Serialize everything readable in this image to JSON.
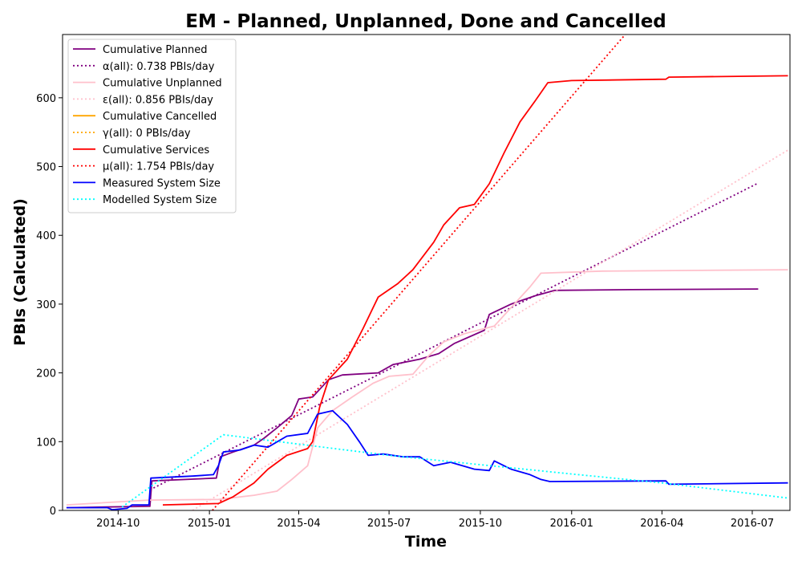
{
  "chart_data": {
    "type": "line",
    "title": "EM - Planned, Unplanned, Done  and Cancelled",
    "xlabel": "Time",
    "ylabel": "PBIs (Calculated)",
    "xlim": [
      "2014-08-06",
      "2016-08-08"
    ],
    "ylim": [
      0,
      692
    ],
    "x_ticks": [
      "2014-10",
      "2015-01",
      "2015-04",
      "2015-07",
      "2015-10",
      "2016-01",
      "2016-04",
      "2016-07"
    ],
    "y_ticks": [
      0,
      100,
      200,
      300,
      400,
      500,
      600
    ],
    "grid": false,
    "legend_position": "top-left",
    "series": [
      {
        "name": "Cumulative Planned",
        "color": "#800080",
        "style": "solid",
        "points": [
          [
            "2014-08-10",
            4
          ],
          [
            "2014-09-20",
            5
          ],
          [
            "2014-11-02",
            6
          ],
          [
            "2014-11-04",
            43
          ],
          [
            "2015-01-08",
            47
          ],
          [
            "2015-01-12",
            78
          ],
          [
            "2015-01-25",
            85
          ],
          [
            "2015-02-15",
            95
          ],
          [
            "2015-02-25",
            105
          ],
          [
            "2015-03-10",
            120
          ],
          [
            "2015-03-25",
            138
          ],
          [
            "2015-04-01",
            162
          ],
          [
            "2015-04-15",
            165
          ],
          [
            "2015-05-01",
            190
          ],
          [
            "2015-05-15",
            197
          ],
          [
            "2015-06-20",
            200
          ],
          [
            "2015-07-05",
            212
          ],
          [
            "2015-08-01",
            220
          ],
          [
            "2015-08-20",
            228
          ],
          [
            "2015-09-05",
            243
          ],
          [
            "2015-10-05",
            262
          ],
          [
            "2015-10-10",
            285
          ],
          [
            "2015-11-01",
            300
          ],
          [
            "2015-11-25",
            312
          ],
          [
            "2015-12-15",
            320
          ],
          [
            "2016-03-01",
            321
          ],
          [
            "2016-07-07",
            322
          ]
        ]
      },
      {
        "name": "α(all): 0.738 PBIs/day",
        "color": "#800080",
        "style": "dotted",
        "points": [
          [
            "2014-11-02",
            30
          ],
          [
            "2016-07-07",
            476
          ]
        ]
      },
      {
        "name": "Cumulative Unplanned",
        "color": "#ffc0cb",
        "style": "solid",
        "points": [
          [
            "2014-08-10",
            8
          ],
          [
            "2014-11-01",
            15
          ],
          [
            "2015-01-10",
            16
          ],
          [
            "2015-02-15",
            22
          ],
          [
            "2015-03-10",
            28
          ],
          [
            "2015-03-25",
            45
          ],
          [
            "2015-04-10",
            65
          ],
          [
            "2015-04-20",
            120
          ],
          [
            "2015-05-05",
            145
          ],
          [
            "2015-05-25",
            165
          ],
          [
            "2015-06-15",
            185
          ],
          [
            "2015-07-01",
            195
          ],
          [
            "2015-07-25",
            198
          ],
          [
            "2015-08-10",
            225
          ],
          [
            "2015-08-25",
            245
          ],
          [
            "2015-09-15",
            257
          ],
          [
            "2015-10-15",
            268
          ],
          [
            "2015-11-01",
            295
          ],
          [
            "2015-11-20",
            325
          ],
          [
            "2015-12-01",
            345
          ],
          [
            "2016-02-01",
            348
          ],
          [
            "2016-08-06",
            350
          ]
        ]
      },
      {
        "name": "ε(all): 0.856 PBIs/day",
        "color": "#ffc0cb",
        "style": "dotted",
        "points": [
          [
            "2014-12-15",
            0
          ],
          [
            "2016-08-06",
            524
          ]
        ]
      },
      {
        "name": "Cumulative Cancelled",
        "color": "#ffa500",
        "style": "solid",
        "points": []
      },
      {
        "name": "γ(all): 0 PBIs/day",
        "color": "#ffa500",
        "style": "dotted",
        "points": []
      },
      {
        "name": "Cumulative Services",
        "color": "#ff0000",
        "style": "solid",
        "points": [
          [
            "2014-11-15",
            8
          ],
          [
            "2015-01-10",
            10
          ],
          [
            "2015-01-25",
            20
          ],
          [
            "2015-02-15",
            40
          ],
          [
            "2015-03-01",
            60
          ],
          [
            "2015-03-20",
            80
          ],
          [
            "2015-04-10",
            90
          ],
          [
            "2015-04-15",
            100
          ],
          [
            "2015-04-22",
            150
          ],
          [
            "2015-05-01",
            190
          ],
          [
            "2015-05-20",
            220
          ],
          [
            "2015-06-05",
            265
          ],
          [
            "2015-06-20",
            310
          ],
          [
            "2015-07-10",
            330
          ],
          [
            "2015-07-25",
            350
          ],
          [
            "2015-08-15",
            390
          ],
          [
            "2015-08-25",
            415
          ],
          [
            "2015-09-10",
            440
          ],
          [
            "2015-09-25",
            445
          ],
          [
            "2015-10-10",
            475
          ],
          [
            "2015-10-25",
            520
          ],
          [
            "2015-11-10",
            565
          ],
          [
            "2015-11-25",
            595
          ],
          [
            "2015-12-08",
            622
          ],
          [
            "2016-01-01",
            625
          ],
          [
            "2016-04-05",
            627
          ],
          [
            "2016-04-08",
            630
          ],
          [
            "2016-08-06",
            632
          ]
        ]
      },
      {
        "name": "μ(all): 1.754 PBIs/day",
        "color": "#ff0000",
        "style": "dotted",
        "points": [
          [
            "2015-01-04",
            0
          ],
          [
            "2016-02-24",
            692
          ]
        ]
      },
      {
        "name": "Measured System Size",
        "color": "#0000ff",
        "style": "solid",
        "points": [
          [
            "2014-08-10",
            4
          ],
          [
            "2014-09-20",
            4
          ],
          [
            "2014-09-25",
            1
          ],
          [
            "2014-10-10",
            3
          ],
          [
            "2014-10-15",
            8
          ],
          [
            "2014-11-01",
            8
          ],
          [
            "2014-11-03",
            47
          ],
          [
            "2014-12-15",
            50
          ],
          [
            "2015-01-05",
            52
          ],
          [
            "2015-01-10",
            65
          ],
          [
            "2015-01-15",
            85
          ],
          [
            "2015-02-01",
            88
          ],
          [
            "2015-02-15",
            95
          ],
          [
            "2015-03-01",
            92
          ],
          [
            "2015-03-20",
            108
          ],
          [
            "2015-04-10",
            112
          ],
          [
            "2015-04-20",
            140
          ],
          [
            "2015-05-05",
            145
          ],
          [
            "2015-05-20",
            125
          ],
          [
            "2015-06-01",
            100
          ],
          [
            "2015-06-10",
            80
          ],
          [
            "2015-06-25",
            82
          ],
          [
            "2015-07-15",
            78
          ],
          [
            "2015-08-01",
            78
          ],
          [
            "2015-08-15",
            65
          ],
          [
            "2015-09-01",
            70
          ],
          [
            "2015-09-25",
            60
          ],
          [
            "2015-10-10",
            58
          ],
          [
            "2015-10-15",
            72
          ],
          [
            "2015-11-01",
            60
          ],
          [
            "2015-11-20",
            52
          ],
          [
            "2015-12-01",
            45
          ],
          [
            "2015-12-10",
            42
          ],
          [
            "2016-04-05",
            43
          ],
          [
            "2016-04-08",
            38
          ],
          [
            "2016-08-06",
            40
          ]
        ]
      },
      {
        "name": "Modelled System Size",
        "color": "#00ffff",
        "style": "dotted",
        "points": [
          [
            "2014-10-05",
            5
          ],
          [
            "2015-01-15",
            110
          ],
          [
            "2015-07-01",
            80
          ],
          [
            "2016-01-01",
            53
          ],
          [
            "2016-04-01",
            40
          ],
          [
            "2016-08-06",
            18
          ]
        ]
      }
    ]
  }
}
